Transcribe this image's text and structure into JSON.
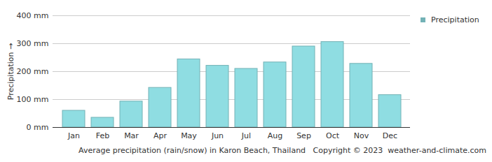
{
  "chart_data": {
    "type": "bar",
    "title": "Average precipitation (rain/snow) in Karon Beach, Thailand",
    "annotations": [
      "Copyright © 2023  weather-and-climate.com"
    ],
    "y_label": "Precipitation",
    "categories": [
      "Jan",
      "Feb",
      "Mar",
      "Apr",
      "May",
      "Jun",
      "Jul",
      "Aug",
      "Sep",
      "Oct",
      "Nov",
      "Dec"
    ],
    "series": [
      {
        "name": "Precipitation",
        "color": "#8fdde2",
        "values": [
          60,
          35,
          93,
          142,
          244,
          221,
          210,
          233,
          290,
          306,
          228,
          116
        ]
      }
    ],
    "ylim": [
      0,
      400
    ],
    "yticks": [
      {
        "value": 0,
        "label": "0 mm"
      },
      {
        "value": 100,
        "label": "100 mm"
      },
      {
        "value": 200,
        "label": "200 mm"
      },
      {
        "value": 300,
        "label": "300 mm"
      },
      {
        "value": 400,
        "label": "400 mm"
      }
    ],
    "grid": true,
    "legend": "right"
  }
}
